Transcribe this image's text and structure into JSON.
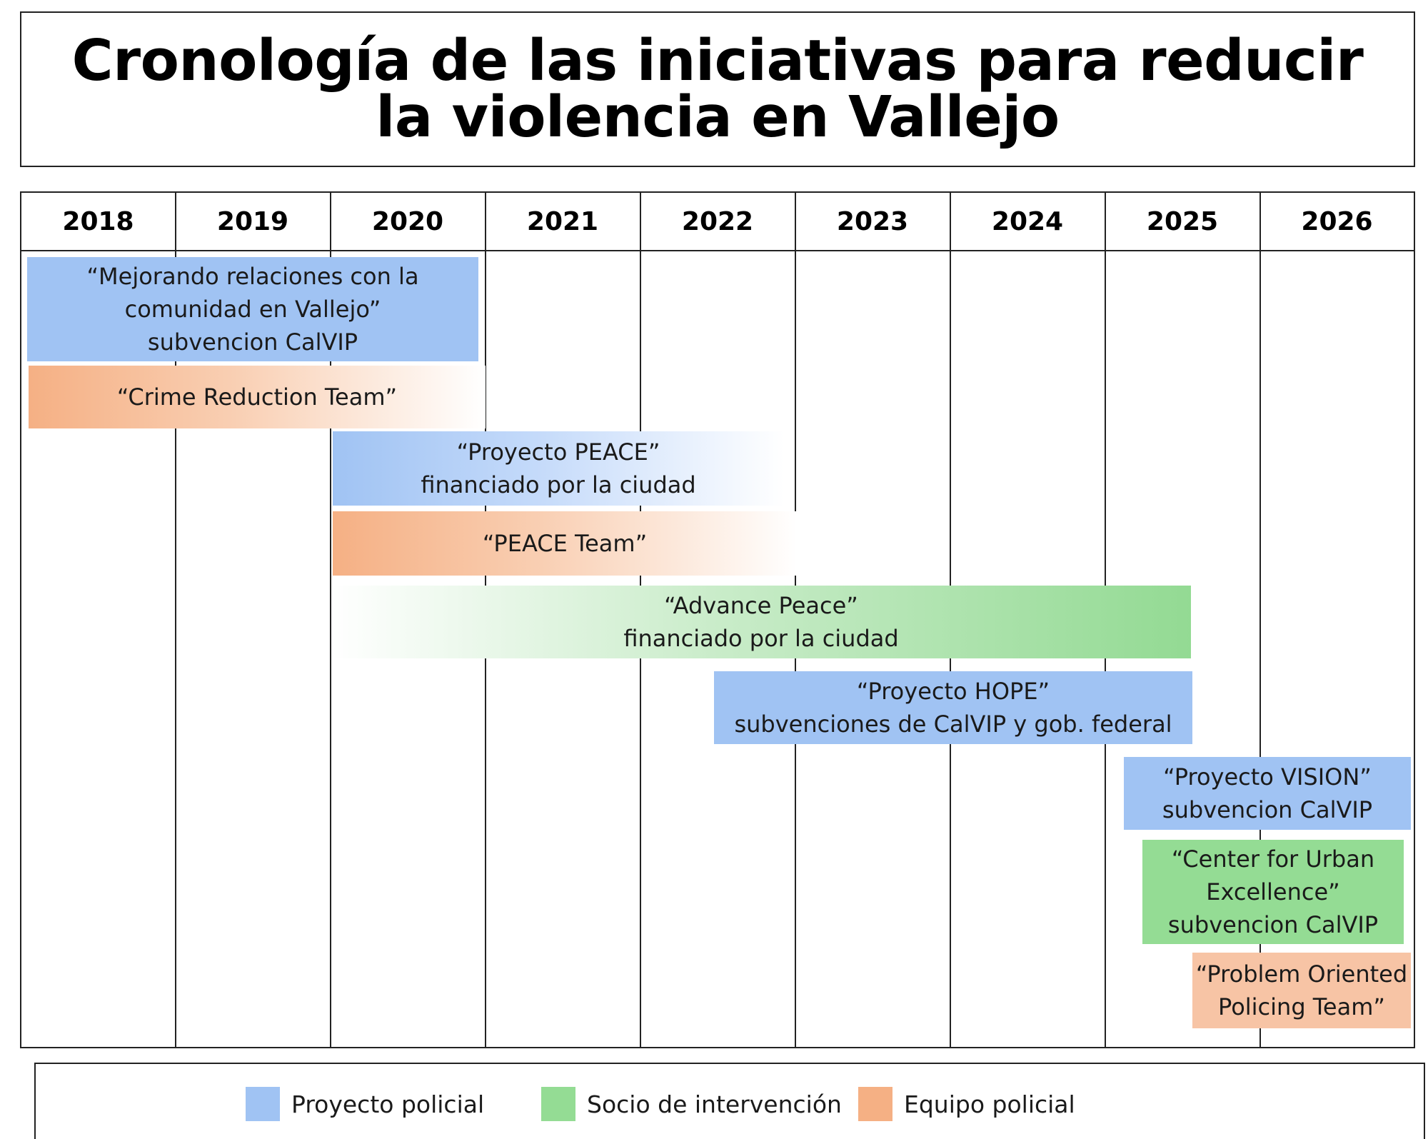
{
  "title": "Cronología de las iniciativas para reducir la violencia en Vallejo",
  "years": [
    "2018",
    "2019",
    "2020",
    "2021",
    "2022",
    "2023",
    "2024",
    "2025",
    "2026"
  ],
  "colors": {
    "proyecto_policial": "#a0c3f3",
    "socio_intervencion": "#94dc94",
    "equipo_policial": "#f5b084"
  },
  "initiatives": [
    {
      "id": "mejorando",
      "category": "proyecto_policial",
      "lines": [
        "“Mejorando relaciones con la",
        "comunidad en Vallejo”",
        "subvencion CalVIP"
      ]
    },
    {
      "id": "crime-reduction",
      "category": "equipo_policial",
      "lines": [
        "“Crime Reduction Team”"
      ]
    },
    {
      "id": "peace-project",
      "category": "proyecto_policial",
      "lines": [
        "“Proyecto PEACE”",
        "financiado por la ciudad"
      ]
    },
    {
      "id": "peace-team",
      "category": "equipo_policial",
      "lines": [
        "“PEACE Team”"
      ]
    },
    {
      "id": "advance-peace",
      "category": "socio_intervencion",
      "lines": [
        "“Advance Peace”",
        "financiado por la ciudad"
      ]
    },
    {
      "id": "hope",
      "category": "proyecto_policial",
      "lines": [
        "“Proyecto HOPE”",
        "subvenciones de CalVIP y gob. federal"
      ]
    },
    {
      "id": "vision",
      "category": "proyecto_policial",
      "lines": [
        "“Proyecto VISION”",
        "subvencion CalVIP"
      ]
    },
    {
      "id": "cue",
      "category": "socio_intervencion",
      "lines": [
        "“Center for Urban",
        "Excellence”",
        "subvencion CalVIP"
      ]
    },
    {
      "id": "pop",
      "category": "equipo_policial",
      "lines": [
        "“Problem Oriented",
        "Policing Team”"
      ]
    }
  ],
  "legend": [
    {
      "label": "Proyecto policial",
      "color": "#a0c3f3"
    },
    {
      "label": "Socio de intervención",
      "color": "#94dc94"
    },
    {
      "label": "Equipo policial",
      "color": "#f5b084"
    }
  ]
}
